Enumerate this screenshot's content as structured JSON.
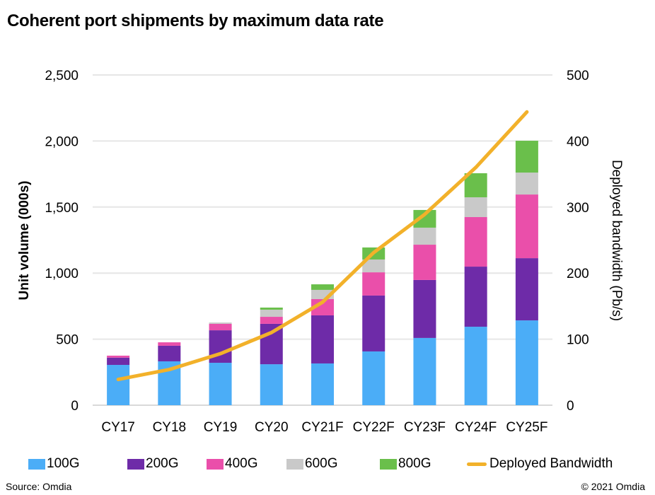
{
  "title": "Coherent port shipments by maximum data rate",
  "source": "Source: Omdia",
  "copyright": "© 2021 Omdia",
  "chart_data": {
    "type": "bar",
    "stacked": true,
    "title": "Coherent port shipments by maximum data rate",
    "categories": [
      "CY17",
      "CY18",
      "CY19",
      "CY20",
      "CY21F",
      "CY22F",
      "CY23F",
      "CY24F",
      "CY25F"
    ],
    "xlabel": "",
    "ylabel": "Unit volume (000s)",
    "y2label": "Deployed bandwidth (Pb/s)",
    "ylim": [
      0,
      2500
    ],
    "y2lim": [
      0,
      500
    ],
    "yticks": [
      "0",
      "500",
      "1,000",
      "1,500",
      "2,000",
      "2,500"
    ],
    "yticks_values": [
      0,
      500,
      1000,
      1500,
      2000,
      2500
    ],
    "y2ticks": [
      "0",
      "100",
      "200",
      "300",
      "400",
      "500"
    ],
    "y2ticks_values": [
      0,
      100,
      200,
      300,
      400,
      500
    ],
    "grid": true,
    "legend_position": "bottom",
    "series": [
      {
        "name": "100G",
        "color": "#4BADF7",
        "axis": "left",
        "kind": "bar",
        "values": [
          305,
          332,
          321,
          310,
          316,
          407,
          509,
          594,
          642
        ]
      },
      {
        "name": "200G",
        "color": "#6E2BA8",
        "axis": "left",
        "kind": "bar",
        "values": [
          55,
          118,
          246,
          306,
          364,
          423,
          439,
          455,
          471
        ]
      },
      {
        "name": "400G",
        "color": "#EA4FAA",
        "axis": "left",
        "kind": "bar",
        "values": [
          15,
          26,
          49,
          53,
          123,
          176,
          267,
          375,
          482
        ]
      },
      {
        "name": "600G",
        "color": "#C9C9C9",
        "axis": "left",
        "kind": "bar",
        "values": [
          0,
          0,
          10,
          54,
          70,
          97,
          129,
          150,
          166
        ]
      },
      {
        "name": "800G",
        "color": "#6ABF4B",
        "axis": "left",
        "kind": "bar",
        "values": [
          0,
          0,
          0,
          16,
          42,
          91,
          134,
          182,
          241
        ]
      },
      {
        "name": "Deployed Bandwidth",
        "color": "#F2B12A",
        "axis": "right",
        "kind": "line",
        "values": [
          39,
          54,
          78,
          110,
          156,
          231,
          289,
          360,
          444
        ]
      }
    ]
  }
}
